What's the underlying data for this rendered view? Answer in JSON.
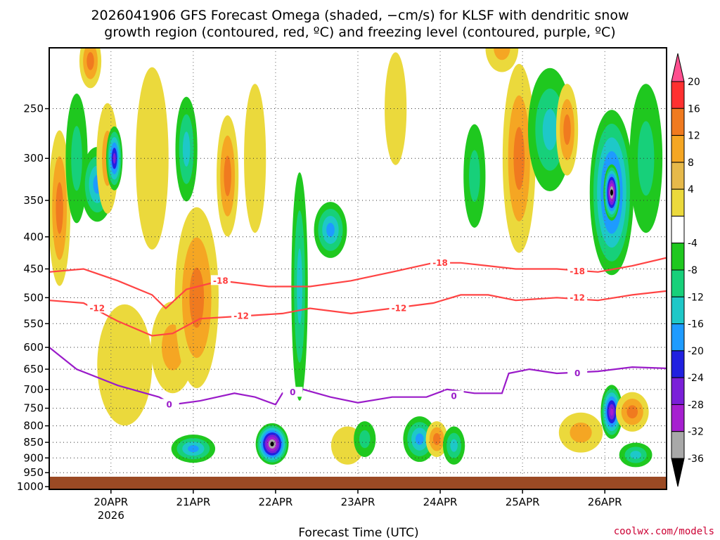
{
  "chart_data": {
    "type": "heatmap",
    "title_lines": [
      "2026041906 GFS Forecast Omega (shaded, −cm/s) for KLSF with dendritic snow",
      "growth region (contoured, red, ºC) and freezing level (contoured, purple, ºC)"
    ],
    "xlabel": "Forecast Time (UTC)",
    "ylabel": "",
    "x_ticks": [
      {
        "label": "20APR",
        "sub": "2026",
        "hour": 18
      },
      {
        "label": "21APR",
        "sub": "",
        "hour": 42
      },
      {
        "label": "22APR",
        "sub": "",
        "hour": 66
      },
      {
        "label": "23APR",
        "sub": "",
        "hour": 90
      },
      {
        "label": "24APR",
        "sub": "",
        "hour": 114
      },
      {
        "label": "25APR",
        "sub": "",
        "hour": 138
      },
      {
        "label": "26APR",
        "sub": "",
        "hour": 162
      }
    ],
    "xlim_hours": [
      0,
      180
    ],
    "y_ticks": [
      250,
      300,
      350,
      400,
      450,
      500,
      550,
      600,
      650,
      700,
      750,
      800,
      850,
      900,
      950,
      1000
    ],
    "ylim_hPa": [
      1010,
      200
    ],
    "colorbar": {
      "unit": "-cm/s",
      "labels": [
        "20",
        "16",
        "12",
        "8",
        "4",
        "-4",
        "-8",
        "-12",
        "-16",
        "-20",
        "-24",
        "-28",
        "-32",
        "-36"
      ],
      "colors": [
        "#ff4f8f",
        "#ff3030",
        "#f07a1f",
        "#f5a623",
        "#e6b94a",
        "#ebd93c",
        "#ffffff",
        "#1fc81f",
        "#17d07a",
        "#1ec8c8",
        "#1e9bff",
        "#2020e0",
        "#7a1fd8",
        "#a61fd0",
        "#a8a8a8",
        "#000000"
      ]
    },
    "omega_blobs": [
      {
        "t": 3,
        "p": 360,
        "v": 12,
        "w": 2,
        "h": 200
      },
      {
        "t": 8,
        "p": 300,
        "v": -8,
        "w": 2,
        "h": 140
      },
      {
        "t": 12,
        "p": 210,
        "v": 12,
        "w": 2,
        "h": 80
      },
      {
        "t": 14,
        "p": 330,
        "v": -16,
        "w": 3,
        "h": 90
      },
      {
        "t": 17,
        "p": 300,
        "v": 8,
        "w": 2,
        "h": 120
      },
      {
        "t": 19,
        "p": 300,
        "v": -24,
        "w": 1.5,
        "h": 70
      },
      {
        "t": 22,
        "p": 640,
        "v": 4,
        "w": 5,
        "h": 280
      },
      {
        "t": 30,
        "p": 300,
        "v": 4,
        "w": 3,
        "h": 200
      },
      {
        "t": 36,
        "p": 600,
        "v": 8,
        "w": 4,
        "h": 200
      },
      {
        "t": 40,
        "p": 290,
        "v": -12,
        "w": 2,
        "h": 110
      },
      {
        "t": 43,
        "p": 500,
        "v": 12,
        "w": 4,
        "h": 320
      },
      {
        "t": 42,
        "p": 870,
        "v": -16,
        "w": 4,
        "h": 90
      },
      {
        "t": 52,
        "p": 320,
        "v": 12,
        "w": 2,
        "h": 140
      },
      {
        "t": 60,
        "p": 300,
        "v": 4,
        "w": 2,
        "h": 160
      },
      {
        "t": 65,
        "p": 855,
        "v": -36,
        "w": 3,
        "h": 130
      },
      {
        "t": 73,
        "p": 480,
        "v": -12,
        "w": 1.5,
        "h": 380
      },
      {
        "t": 82,
        "p": 390,
        "v": -16,
        "w": 3,
        "h": 80
      },
      {
        "t": 87,
        "p": 860,
        "v": 4,
        "w": 3,
        "h": 120
      },
      {
        "t": 92,
        "p": 840,
        "v": -8,
        "w": 2,
        "h": 110
      },
      {
        "t": 101,
        "p": 250,
        "v": 4,
        "w": 2,
        "h": 120
      },
      {
        "t": 108,
        "p": 840,
        "v": -16,
        "w": 3,
        "h": 140
      },
      {
        "t": 113,
        "p": 840,
        "v": 12,
        "w": 2,
        "h": 110
      },
      {
        "t": 118,
        "p": 860,
        "v": -12,
        "w": 2,
        "h": 120
      },
      {
        "t": 124,
        "p": 320,
        "v": -8,
        "w": 2,
        "h": 120
      },
      {
        "t": 132,
        "p": 200,
        "v": 8,
        "w": 3,
        "h": 90
      },
      {
        "t": 137,
        "p": 300,
        "v": 12,
        "w": 3,
        "h": 220
      },
      {
        "t": 146,
        "p": 270,
        "v": -12,
        "w": 4,
        "h": 120
      },
      {
        "t": 151,
        "p": 270,
        "v": 12,
        "w": 2,
        "h": 90
      },
      {
        "t": 155,
        "p": 820,
        "v": 8,
        "w": 4,
        "h": 120
      },
      {
        "t": 164,
        "p": 340,
        "v": -24,
        "w": 4,
        "h": 200
      },
      {
        "t": 164,
        "p": 340,
        "v": -36,
        "w": 1.5,
        "h": 70
      },
      {
        "t": 164,
        "p": 760,
        "v": -28,
        "w": 2,
        "h": 150
      },
      {
        "t": 170,
        "p": 760,
        "v": 12,
        "w": 3,
        "h": 110
      },
      {
        "t": 171,
        "p": 890,
        "v": -12,
        "w": 3,
        "h": 80
      },
      {
        "t": 174,
        "p": 300,
        "v": -8,
        "w": 3,
        "h": 160
      }
    ],
    "contours": [
      {
        "label": "-18",
        "color": "#ff4444",
        "points": [
          [
            0,
            455
          ],
          [
            10,
            450
          ],
          [
            20,
            470
          ],
          [
            30,
            495
          ],
          [
            34,
            520
          ],
          [
            40,
            485
          ],
          [
            50,
            470
          ],
          [
            64,
            480
          ],
          [
            76,
            480
          ],
          [
            88,
            470
          ],
          [
            100,
            455
          ],
          [
            112,
            440
          ],
          [
            120,
            440
          ],
          [
            128,
            445
          ],
          [
            136,
            450
          ],
          [
            148,
            450
          ],
          [
            160,
            455
          ],
          [
            170,
            445
          ],
          [
            180,
            432
          ]
        ],
        "label_at": [
          [
            50,
            470
          ],
          [
            114,
            440
          ],
          [
            154,
            454
          ]
        ]
      },
      {
        "label": "-12",
        "color": "#ff4444",
        "points": [
          [
            0,
            505
          ],
          [
            10,
            510
          ],
          [
            20,
            545
          ],
          [
            30,
            575
          ],
          [
            36,
            570
          ],
          [
            44,
            540
          ],
          [
            56,
            535
          ],
          [
            68,
            530
          ],
          [
            76,
            520
          ],
          [
            88,
            530
          ],
          [
            100,
            520
          ],
          [
            112,
            510
          ],
          [
            120,
            495
          ],
          [
            128,
            495
          ],
          [
            136,
            505
          ],
          [
            148,
            500
          ],
          [
            160,
            505
          ],
          [
            170,
            495
          ],
          [
            180,
            488
          ]
        ],
        "label_at": [
          [
            14,
            520
          ],
          [
            56,
            535
          ],
          [
            102,
            520
          ],
          [
            154,
            500
          ]
        ]
      },
      {
        "label": "0",
        "color": "#9a1bc9",
        "points": [
          [
            0,
            600
          ],
          [
            8,
            650
          ],
          [
            20,
            690
          ],
          [
            32,
            720
          ],
          [
            36,
            740
          ],
          [
            44,
            730
          ],
          [
            54,
            710
          ],
          [
            60,
            720
          ],
          [
            66,
            740
          ],
          [
            68,
            710
          ],
          [
            74,
            700
          ],
          [
            82,
            720
          ],
          [
            90,
            735
          ],
          [
            100,
            720
          ],
          [
            110,
            720
          ],
          [
            116,
            700
          ],
          [
            124,
            710
          ],
          [
            132,
            710
          ],
          [
            134,
            660
          ],
          [
            140,
            650
          ],
          [
            148,
            660
          ],
          [
            160,
            655
          ],
          [
            170,
            645
          ],
          [
            180,
            648
          ]
        ],
        "label_at": [
          [
            35,
            740
          ],
          [
            71,
            708
          ],
          [
            118,
            718
          ],
          [
            154,
            660
          ]
        ]
      }
    ],
    "ground_p": 1000
  },
  "credit": "coolwx.com/models"
}
